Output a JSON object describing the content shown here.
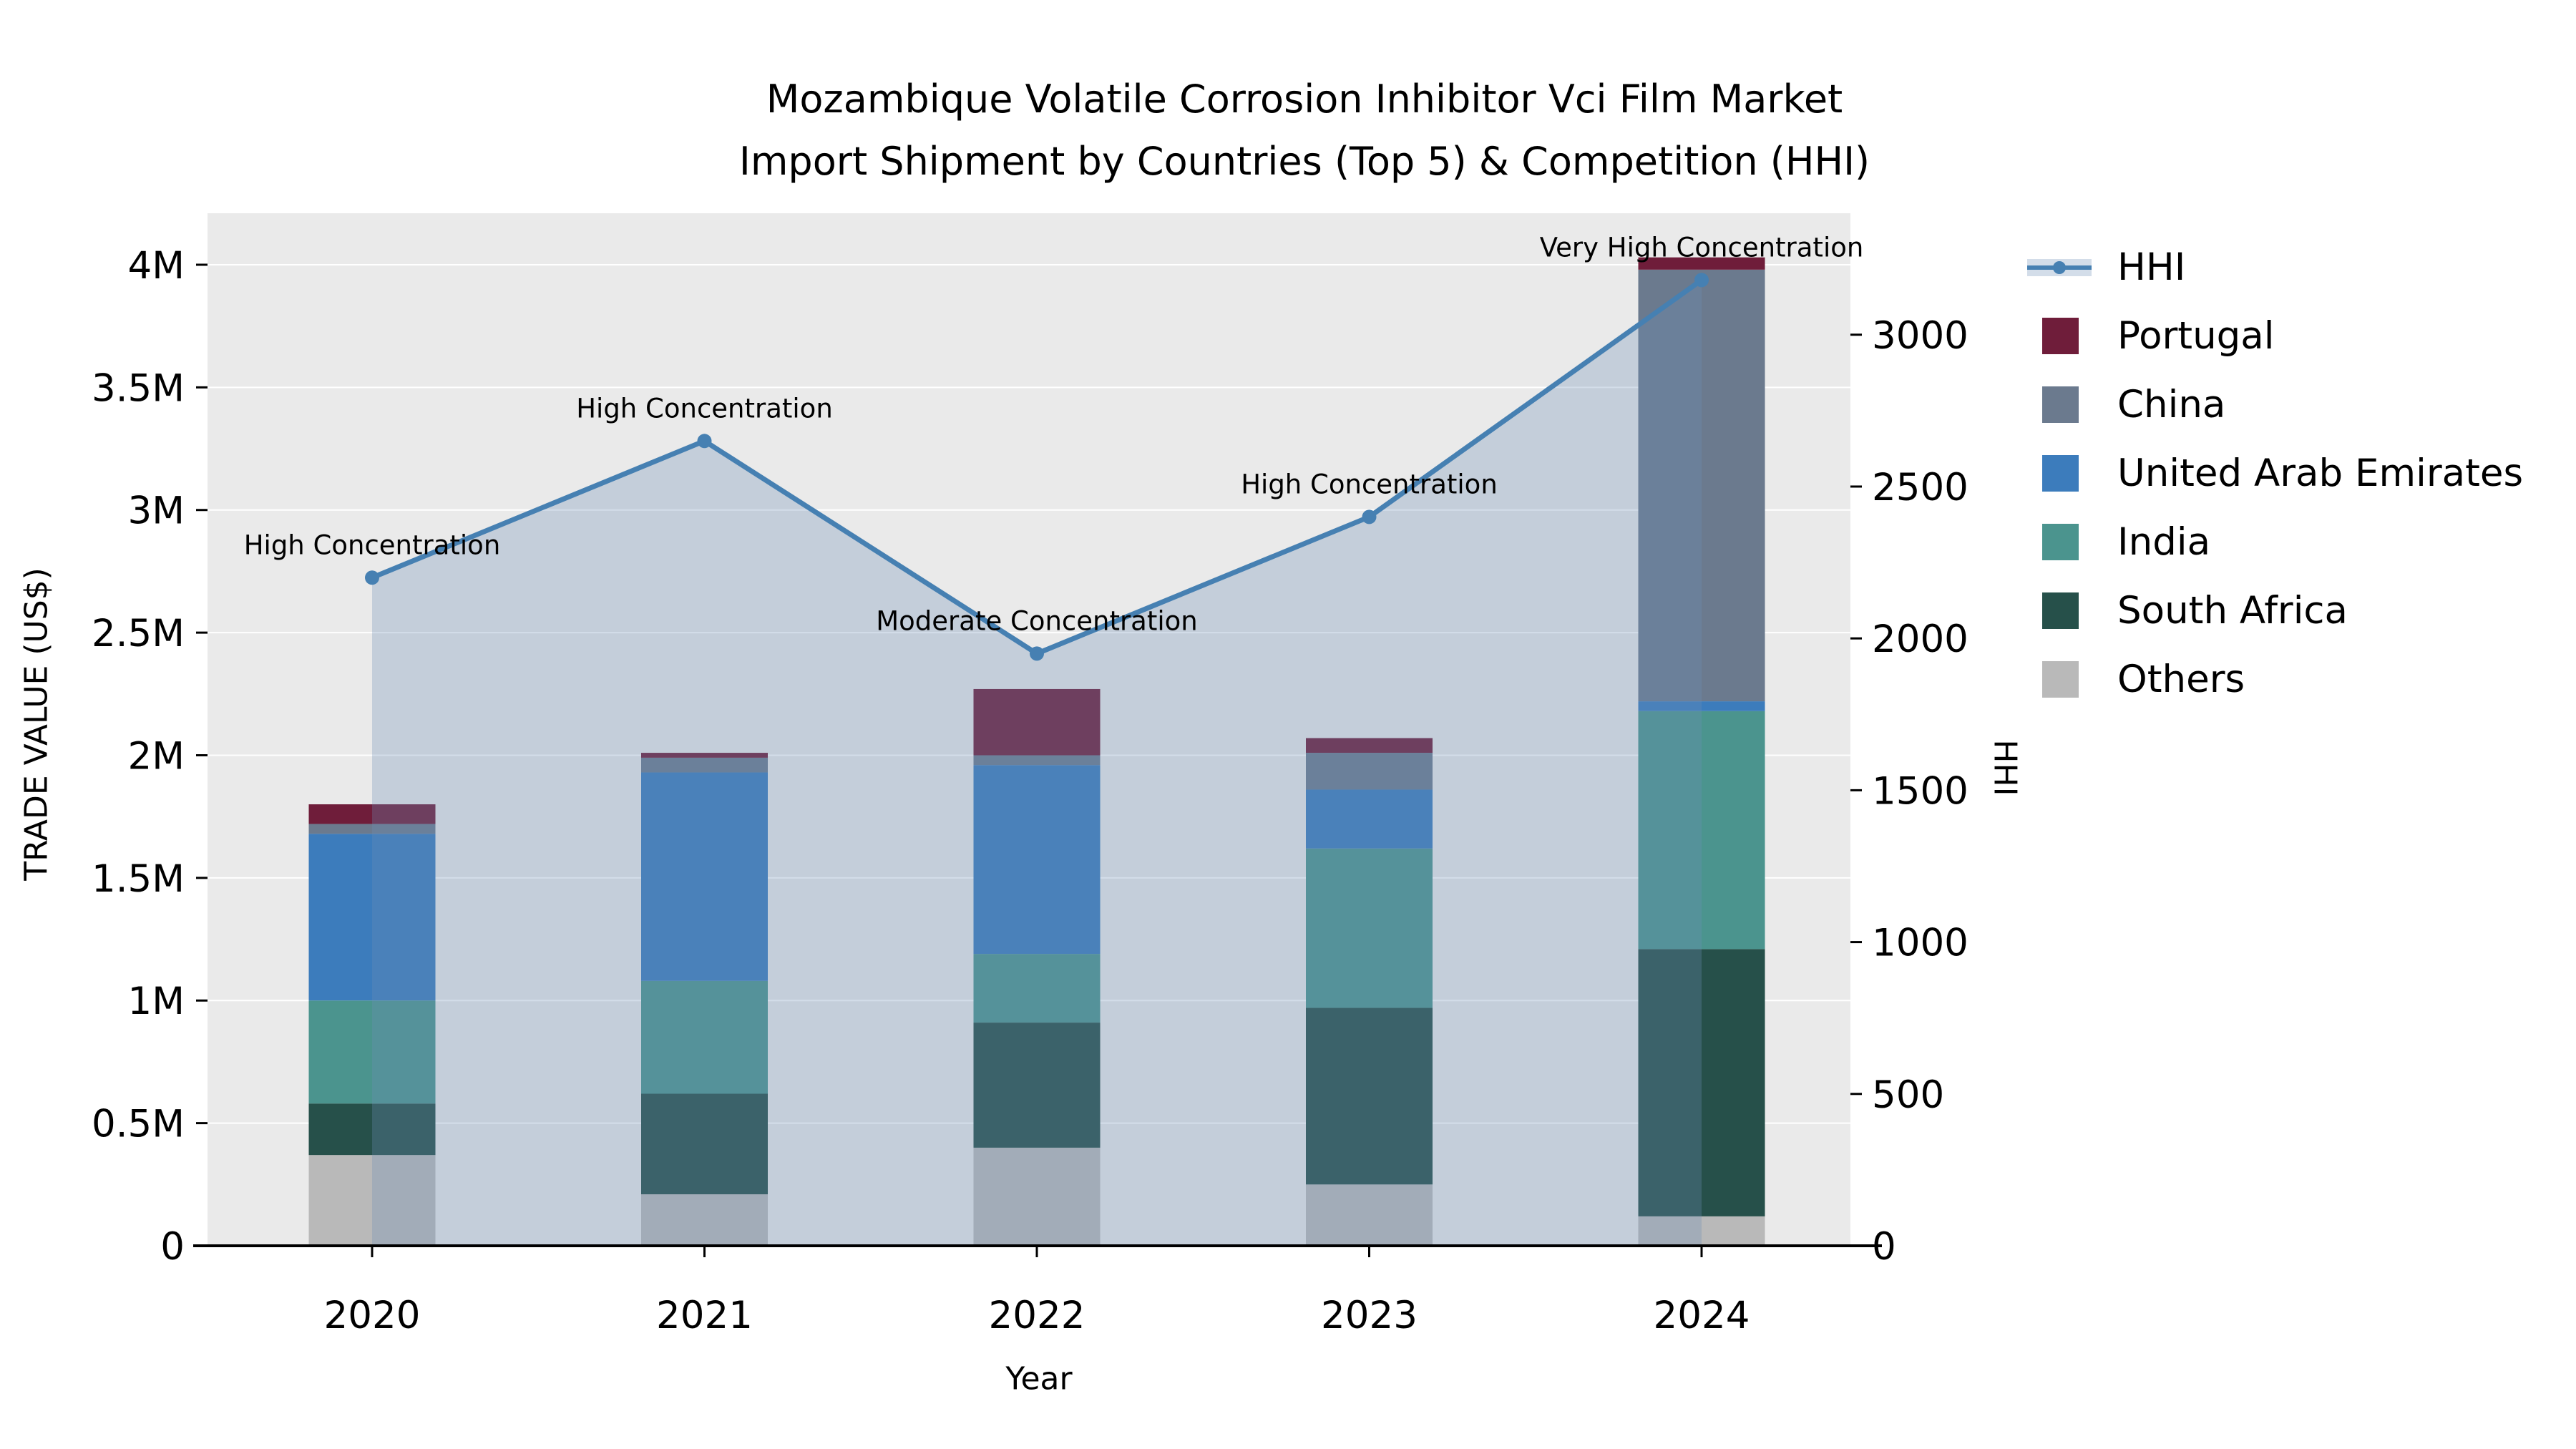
{
  "title": {
    "line1": "Mozambique Volatile Corrosion Inhibitor Vci Film Market",
    "line2": "Import Shipment by Countries (Top 5) & Competition (HHI)"
  },
  "axis_labels": {
    "y_left": "TRADE VALUE (US$)",
    "y_right": "HHI",
    "x": "Year"
  },
  "colors": {
    "plot_bg": "#eaeaea",
    "grid": "#ffffff",
    "hhi_line": "#4680b2",
    "area_fill": "rgba(110,142,182,0.30)",
    "axis": "#000000"
  },
  "chart_data": {
    "type": "bar",
    "stacked": true,
    "title": "Mozambique Volatile Corrosion Inhibitor Vci Film Market Import Shipment by Countries (Top 5) & Competition (HHI)",
    "xlabel": "Year",
    "ylabel_left": "TRADE VALUE (US$)",
    "ylabel_right": "HHI",
    "categories": [
      "2020",
      "2021",
      "2022",
      "2023",
      "2024"
    ],
    "series": [
      {
        "name": "Others",
        "color": "#b9b9b9",
        "values": [
          370000,
          210000,
          400000,
          250000,
          120000
        ]
      },
      {
        "name": "South Africa",
        "color": "#26504a",
        "values": [
          210000,
          410000,
          510000,
          720000,
          1090000
        ]
      },
      {
        "name": "India",
        "color": "#4b948e",
        "values": [
          420000,
          460000,
          280000,
          650000,
          970000
        ]
      },
      {
        "name": "United Arab Emirates",
        "color": "#3c7cbc",
        "values": [
          680000,
          850000,
          770000,
          240000,
          40000
        ]
      },
      {
        "name": "China",
        "color": "#6b7a8e",
        "values": [
          40000,
          60000,
          40000,
          150000,
          1760000
        ]
      },
      {
        "name": "Portugal",
        "color": "#6f1d3a",
        "values": [
          80000,
          20000,
          270000,
          60000,
          50000
        ]
      }
    ],
    "line": {
      "name": "HHI",
      "color": "#4680b2",
      "values": [
        2200,
        2650,
        1950,
        2400,
        3180
      ],
      "annotations": [
        "High Concentration",
        "High Concentration",
        "Moderate Concentration",
        "High Concentration",
        "Very High Concentration"
      ]
    },
    "ylim_left": [
      0,
      4210000
    ],
    "ylim_right": [
      0,
      3400
    ],
    "y_left_ticks": [
      {
        "label": "0",
        "v": 0
      },
      {
        "label": "0.5M",
        "v": 500000
      },
      {
        "label": "1M",
        "v": 1000000
      },
      {
        "label": "1.5M",
        "v": 1500000
      },
      {
        "label": "2M",
        "v": 2000000
      },
      {
        "label": "2.5M",
        "v": 2500000
      },
      {
        "label": "3M",
        "v": 3000000
      },
      {
        "label": "3.5M",
        "v": 3500000
      },
      {
        "label": "4M",
        "v": 4000000
      }
    ],
    "y_right_ticks": [
      {
        "label": "0",
        "v": 0
      },
      {
        "label": "500",
        "v": 500
      },
      {
        "label": "1000",
        "v": 1000
      },
      {
        "label": "1500",
        "v": 1500
      },
      {
        "label": "2000",
        "v": 2000
      },
      {
        "label": "2500",
        "v": 2500
      },
      {
        "label": "3000",
        "v": 3000
      }
    ],
    "legend": [
      {
        "label": "HHI",
        "type": "line",
        "color": "#4680b2"
      },
      {
        "label": "Portugal",
        "type": "patch",
        "color": "#6f1d3a"
      },
      {
        "label": "China",
        "type": "patch",
        "color": "#6b7a8e"
      },
      {
        "label": "United Arab Emirates",
        "type": "patch",
        "color": "#3c7cbc"
      },
      {
        "label": "India",
        "type": "patch",
        "color": "#4b948e"
      },
      {
        "label": "South Africa",
        "type": "patch",
        "color": "#26504a"
      },
      {
        "label": "Others",
        "type": "patch",
        "color": "#b9b9b9"
      }
    ],
    "legend_position": "right"
  }
}
